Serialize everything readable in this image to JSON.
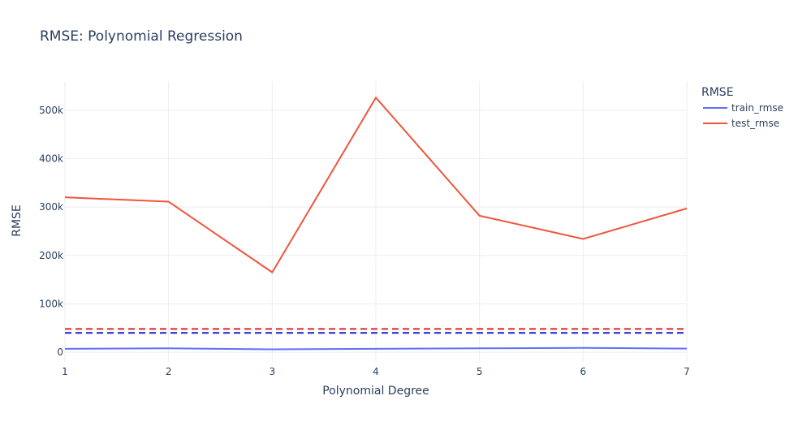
{
  "chart_data": {
    "type": "line",
    "title": "RMSE: Polynomial Regression",
    "xlabel": "Polynomial Degree",
    "ylabel": "RMSE",
    "x": [
      1,
      2,
      3,
      4,
      5,
      6,
      7
    ],
    "xlim": [
      1,
      7
    ],
    "ylim": [
      -20000,
      560000
    ],
    "yticks": [
      0,
      100000,
      200000,
      300000,
      400000,
      500000
    ],
    "ytick_labels": [
      "0",
      "100k",
      "200k",
      "300k",
      "400k",
      "500k"
    ],
    "grid": true,
    "legend": {
      "title": "RMSE",
      "placement": "top-right"
    },
    "series": [
      {
        "name": "train_rmse",
        "color": "#636efa",
        "values": [
          7000,
          8000,
          6000,
          7000,
          8000,
          9000,
          7500
        ]
      },
      {
        "name": "test_rmse",
        "color": "#ef553b",
        "values": [
          320000,
          311000,
          165000,
          526000,
          282000,
          234000,
          297000
        ]
      }
    ],
    "reference_lines": [
      {
        "color": "#d62728",
        "style": "dashed",
        "value": 48000
      },
      {
        "color": "#1f1fcc",
        "style": "dashed",
        "value": 40000
      }
    ]
  }
}
